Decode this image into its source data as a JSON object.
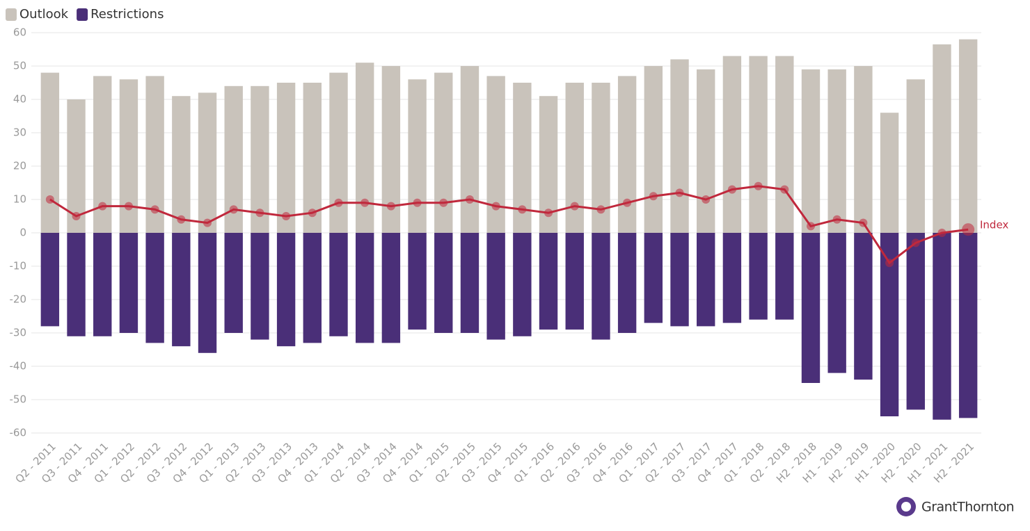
{
  "chart_data": {
    "type": "bar",
    "categories": [
      "Q2 - 2011",
      "Q3 - 2011",
      "Q4 - 2011",
      "Q1 - 2012",
      "Q2 - 2012",
      "Q3 - 2012",
      "Q4 - 2012",
      "Q1 - 2013",
      "Q2 - 2013",
      "Q3 - 2013",
      "Q4 - 2013",
      "Q1 - 2014",
      "Q2 - 2014",
      "Q3 - 2014",
      "Q4 - 2014",
      "Q1 - 2015",
      "Q2 - 2015",
      "Q3 - 2015",
      "Q4 - 2015",
      "Q1 - 2016",
      "Q2 - 2016",
      "Q3 - 2016",
      "Q4 - 2016",
      "Q1 - 2017",
      "Q2 - 2017",
      "Q3 - 2017",
      "Q4 - 2017",
      "Q1 - 2018",
      "Q2 - 2018",
      "H2 - 2018",
      "H1 - 2019",
      "H2 - 2019",
      "H1 - 2020",
      "H2 - 2020",
      "H1 - 2021",
      "H2 - 2021"
    ],
    "series": [
      {
        "name": "Outlook",
        "color": "#c9c3bb",
        "values": [
          48,
          40,
          47,
          46,
          47,
          41,
          42,
          44,
          44,
          45,
          45,
          48,
          51,
          50,
          46,
          48,
          50,
          47,
          45,
          41,
          45,
          45,
          47,
          50,
          52,
          49,
          53,
          53,
          53,
          49,
          49,
          50,
          36,
          46,
          56.5,
          58
        ]
      },
      {
        "name": "Restrictions",
        "color": "#4a2f78",
        "values": [
          -28,
          -31,
          -31,
          -30,
          -33,
          -34,
          -36,
          -30,
          -32,
          -34,
          -33,
          -31,
          -33,
          -33,
          -29,
          -30,
          -30,
          -32,
          -31,
          -29,
          -29,
          -32,
          -30,
          -27,
          -28,
          -28,
          -27,
          -26,
          -26,
          -45,
          -42,
          -44,
          -55,
          -53,
          -56,
          -55.5
        ]
      },
      {
        "name": "Index",
        "type": "line",
        "color": "#c0283c",
        "values": [
          10,
          5,
          8,
          8,
          7,
          4,
          3,
          7,
          6,
          5,
          6,
          9,
          9,
          8,
          9,
          9,
          10,
          8,
          7,
          6,
          8,
          7,
          9,
          11,
          12,
          10,
          13,
          14,
          13,
          2,
          4,
          3,
          -9,
          -3,
          0,
          1
        ]
      }
    ],
    "ylim": [
      -60,
      60
    ],
    "yticks": [
      -60,
      -50,
      -40,
      -30,
      -20,
      -10,
      0,
      10,
      20,
      30,
      40,
      50,
      60
    ],
    "grid": true,
    "legend": "top-left",
    "logo": "GrantThornton"
  }
}
